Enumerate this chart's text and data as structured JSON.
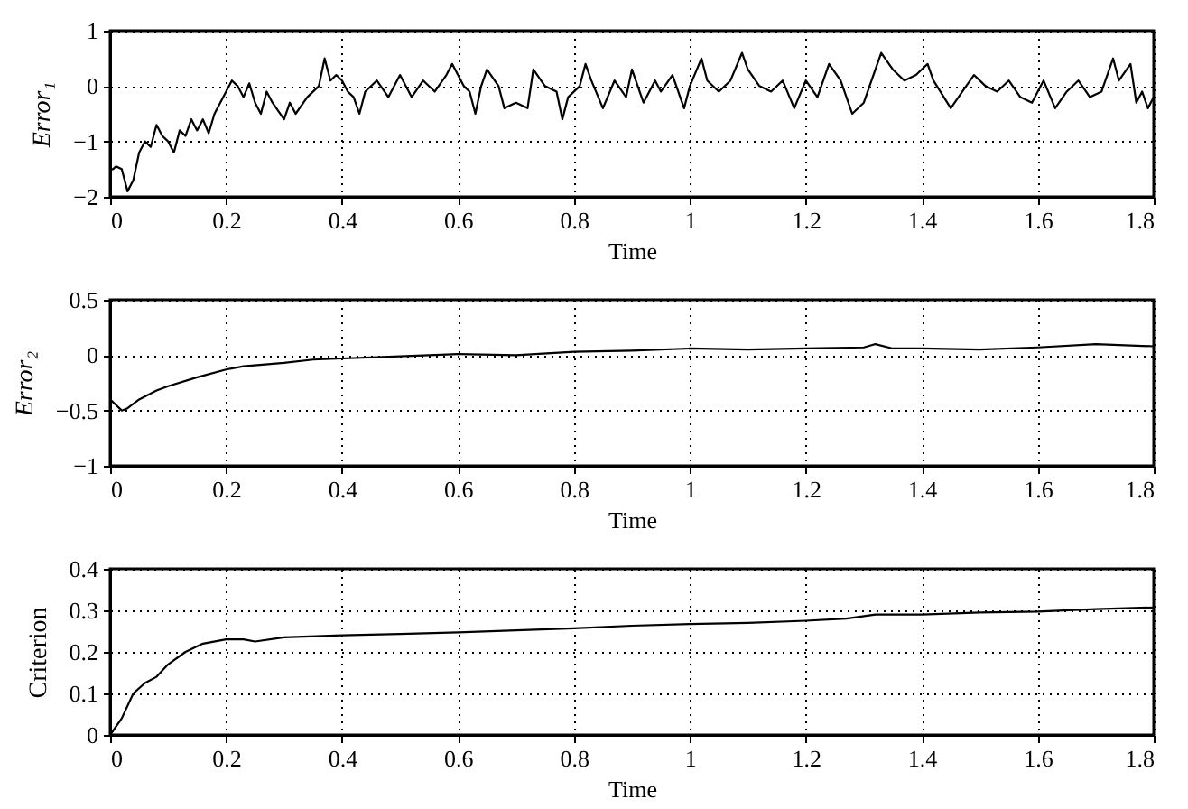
{
  "chart_data": [
    {
      "type": "line",
      "xlabel": "Time",
      "ylabel": "Error₁",
      "xlim": [
        0,
        1.8
      ],
      "xticks": [
        0,
        0.2,
        0.4,
        0.6,
        0.8,
        1,
        1.2,
        1.4,
        1.6,
        1.8
      ],
      "ylim": [
        -2,
        1
      ],
      "yticks": [
        -2,
        -1,
        0,
        1
      ],
      "grid": true,
      "line_style": "solid",
      "series": [
        {
          "color": "#000000",
          "x": [
            0,
            0.005,
            0.01,
            0.02,
            0.03,
            0.04,
            0.05,
            0.06,
            0.07,
            0.08,
            0.09,
            0.1,
            0.11,
            0.12,
            0.13,
            0.14,
            0.15,
            0.16,
            0.17,
            0.18,
            0.19,
            0.2,
            0.21,
            0.22,
            0.23,
            0.24,
            0.25,
            0.26,
            0.27,
            0.28,
            0.3,
            0.31,
            0.32,
            0.34,
            0.36,
            0.37,
            0.38,
            0.39,
            0.4,
            0.41,
            0.42,
            0.43,
            0.44,
            0.46,
            0.48,
            0.5,
            0.52,
            0.54,
            0.56,
            0.58,
            0.59,
            0.6,
            0.61,
            0.62,
            0.63,
            0.64,
            0.65,
            0.67,
            0.68,
            0.7,
            0.72,
            0.73,
            0.75,
            0.77,
            0.78,
            0.79,
            0.81,
            0.82,
            0.83,
            0.85,
            0.87,
            0.89,
            0.9,
            0.92,
            0.94,
            0.95,
            0.97,
            0.99,
            1.0,
            1.02,
            1.03,
            1.05,
            1.07,
            1.09,
            1.1,
            1.12,
            1.14,
            1.16,
            1.18,
            1.2,
            1.22,
            1.24,
            1.26,
            1.28,
            1.3,
            1.32,
            1.33,
            1.35,
            1.37,
            1.39,
            1.41,
            1.42,
            1.45,
            1.47,
            1.49,
            1.51,
            1.53,
            1.55,
            1.57,
            1.59,
            1.61,
            1.63,
            1.65,
            1.67,
            1.69,
            1.71,
            1.73,
            1.74,
            1.76,
            1.77,
            1.78,
            1.79,
            1.8
          ],
          "values": [
            -1.5,
            -1.5,
            -1.45,
            -1.5,
            -1.9,
            -1.7,
            -1.2,
            -1.0,
            -1.1,
            -0.7,
            -0.9,
            -1.0,
            -1.2,
            -0.8,
            -0.9,
            -0.6,
            -0.8,
            -0.6,
            -0.85,
            -0.5,
            -0.3,
            -0.1,
            0.1,
            0.0,
            -0.2,
            0.05,
            -0.3,
            -0.5,
            -0.1,
            -0.3,
            -0.6,
            -0.3,
            -0.5,
            -0.2,
            0.0,
            0.5,
            0.1,
            0.2,
            0.1,
            -0.1,
            -0.2,
            -0.5,
            -0.1,
            0.1,
            -0.2,
            0.2,
            -0.2,
            0.1,
            -0.1,
            0.2,
            0.4,
            0.2,
            0.0,
            -0.1,
            -0.5,
            0.0,
            0.3,
            0.0,
            -0.4,
            -0.3,
            -0.4,
            0.3,
            0.0,
            -0.1,
            -0.6,
            -0.2,
            0.0,
            0.4,
            0.1,
            -0.4,
            0.1,
            -0.2,
            0.3,
            -0.3,
            0.1,
            -0.1,
            0.2,
            -0.4,
            0.0,
            0.5,
            0.1,
            -0.1,
            0.1,
            0.6,
            0.3,
            0.0,
            -0.1,
            0.1,
            -0.4,
            0.1,
            -0.2,
            0.4,
            0.1,
            -0.5,
            -0.3,
            0.3,
            0.6,
            0.3,
            0.1,
            0.2,
            0.4,
            0.1,
            -0.4,
            -0.1,
            0.2,
            0.0,
            -0.1,
            0.1,
            -0.2,
            -0.3,
            0.1,
            -0.4,
            -0.1,
            0.1,
            -0.2,
            -0.1,
            0.5,
            0.1,
            0.4,
            -0.3,
            -0.1,
            -0.4,
            -0.2
          ]
        }
      ]
    },
    {
      "type": "line",
      "xlabel": "Time",
      "ylabel": "Error₂",
      "xlim": [
        0,
        1.8
      ],
      "xticks": [
        0,
        0.2,
        0.4,
        0.6,
        0.8,
        1,
        1.2,
        1.4,
        1.6,
        1.8
      ],
      "ylim": [
        -1,
        0.5
      ],
      "yticks": [
        -1,
        -0.5,
        0,
        0.5
      ],
      "grid": true,
      "line_style": "solid",
      "series": [
        {
          "color": "#000000",
          "x": [
            0,
            0.01,
            0.02,
            0.03,
            0.05,
            0.08,
            0.1,
            0.15,
            0.2,
            0.23,
            0.3,
            0.35,
            0.4,
            0.5,
            0.6,
            0.7,
            0.8,
            0.9,
            1.0,
            1.1,
            1.2,
            1.3,
            1.32,
            1.35,
            1.4,
            1.5,
            1.6,
            1.7,
            1.8
          ],
          "values": [
            -0.4,
            -0.45,
            -0.5,
            -0.48,
            -0.4,
            -0.32,
            -0.28,
            -0.2,
            -0.13,
            -0.1,
            -0.07,
            -0.04,
            -0.03,
            -0.01,
            0.01,
            0.0,
            0.03,
            0.04,
            0.06,
            0.05,
            0.06,
            0.07,
            0.1,
            0.06,
            0.06,
            0.05,
            0.07,
            0.1,
            0.08
          ]
        }
      ]
    },
    {
      "type": "line",
      "xlabel": "Time",
      "ylabel": "Criterion",
      "xlim": [
        0,
        1.8
      ],
      "xticks": [
        0,
        0.2,
        0.4,
        0.6,
        0.8,
        1,
        1.2,
        1.4,
        1.6,
        1.8
      ],
      "ylim": [
        0,
        0.4
      ],
      "yticks": [
        0,
        0.1,
        0.2,
        0.3,
        0.4
      ],
      "grid": true,
      "line_style": "solid",
      "series": [
        {
          "color": "#000000",
          "x": [
            0,
            0.02,
            0.04,
            0.06,
            0.08,
            0.1,
            0.13,
            0.16,
            0.2,
            0.23,
            0.25,
            0.3,
            0.4,
            0.5,
            0.6,
            0.7,
            0.8,
            0.9,
            1.0,
            1.1,
            1.2,
            1.27,
            1.32,
            1.4,
            1.5,
            1.6,
            1.7,
            1.8
          ],
          "values": [
            0,
            0.04,
            0.1,
            0.125,
            0.14,
            0.17,
            0.2,
            0.22,
            0.23,
            0.23,
            0.225,
            0.235,
            0.24,
            0.243,
            0.247,
            0.252,
            0.257,
            0.263,
            0.267,
            0.27,
            0.275,
            0.28,
            0.29,
            0.29,
            0.295,
            0.297,
            0.303,
            0.307
          ]
        }
      ]
    }
  ]
}
